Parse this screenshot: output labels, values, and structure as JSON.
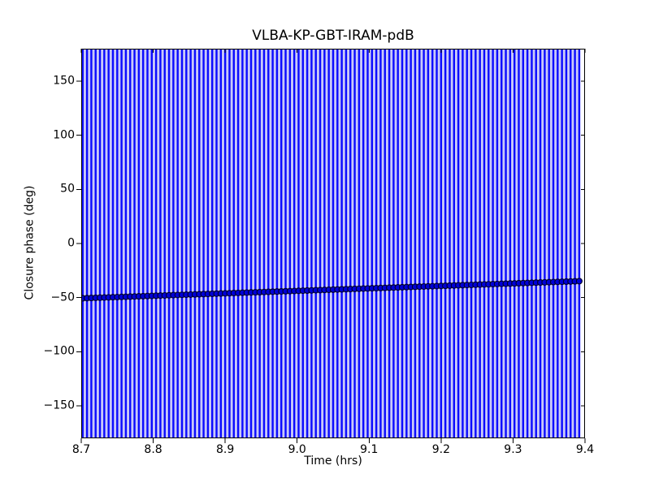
{
  "figure": {
    "background_color": "#ffffff",
    "text_color": "#000000",
    "axis_color": "#000000"
  },
  "chart_data": {
    "type": "scatter",
    "title": "VLBA-KP-GBT-IRAM-pdB",
    "xlabel": "Time (hrs)",
    "ylabel": "Closure phase (deg)",
    "xlim": [
      8.7,
      9.4
    ],
    "ylim": [
      -180,
      180
    ],
    "x_ticks": [
      8.7,
      8.8,
      8.9,
      9.0,
      9.1,
      9.2,
      9.3,
      9.4
    ],
    "x_tick_labels": [
      "8.7",
      "8.8",
      "8.9",
      "9.0",
      "9.1",
      "9.2",
      "9.3",
      "9.4"
    ],
    "y_ticks": [
      -150,
      -100,
      -50,
      0,
      50,
      100,
      150
    ],
    "y_tick_labels": [
      "−150",
      "−100",
      "−50",
      "0",
      "50",
      "100",
      "150"
    ],
    "grid": false,
    "legend": null,
    "n_points": 116,
    "errorbar_note": "every point has a vertical error bar spanning the full y-axis range (clipped at ±180 deg)",
    "series": [
      {
        "name": "closure-phase",
        "marker": "circle",
        "marker_color": "#0000d8",
        "marker_edge_color": "#000025",
        "error_bar_color": "#0a0aff",
        "error_band_tint": "#c9c9f7",
        "x": [
          8.702,
          8.708,
          8.714,
          8.72,
          8.726,
          8.732,
          8.738,
          8.744,
          8.75,
          8.756,
          8.762,
          8.768,
          8.774,
          8.78,
          8.786,
          8.792,
          8.798,
          8.804,
          8.81,
          8.816,
          8.822,
          8.828,
          8.834,
          8.84,
          8.846,
          8.852,
          8.858,
          8.864,
          8.87,
          8.876,
          8.882,
          8.888,
          8.894,
          8.9,
          8.906,
          8.912,
          8.918,
          8.924,
          8.93,
          8.936,
          8.942,
          8.948,
          8.954,
          8.96,
          8.966,
          8.972,
          8.978,
          8.984,
          8.99,
          8.996,
          9.002,
          9.008,
          9.014,
          9.02,
          9.026,
          9.032,
          9.038,
          9.044,
          9.05,
          9.056,
          9.062,
          9.068,
          9.074,
          9.08,
          9.086,
          9.092,
          9.098,
          9.104,
          9.11,
          9.116,
          9.122,
          9.128,
          9.134,
          9.14,
          9.146,
          9.152,
          9.158,
          9.164,
          9.17,
          9.176,
          9.182,
          9.188,
          9.194,
          9.2,
          9.206,
          9.212,
          9.218,
          9.224,
          9.23,
          9.236,
          9.242,
          9.248,
          9.254,
          9.26,
          9.266,
          9.272,
          9.278,
          9.284,
          9.29,
          9.296,
          9.302,
          9.308,
          9.314,
          9.32,
          9.326,
          9.332,
          9.338,
          9.344,
          9.35,
          9.356,
          9.362,
          9.368,
          9.374,
          9.38,
          9.386,
          9.392
        ],
        "y": [
          -50.6,
          -50.46,
          -50.33,
          -50.19,
          -50.05,
          -49.91,
          -49.78,
          -49.64,
          -49.5,
          -49.36,
          -49.23,
          -49.09,
          -48.95,
          -48.81,
          -48.68,
          -48.54,
          -48.4,
          -48.26,
          -48.13,
          -47.99,
          -47.85,
          -47.71,
          -47.58,
          -47.44,
          -47.3,
          -47.17,
          -47.03,
          -46.89,
          -46.75,
          -46.62,
          -46.48,
          -46.34,
          -46.2,
          -46.07,
          -45.93,
          -45.79,
          -45.65,
          -45.52,
          -45.38,
          -45.24,
          -45.1,
          -44.97,
          -44.83,
          -44.69,
          -44.55,
          -44.42,
          -44.28,
          -44.14,
          -44.01,
          -43.87,
          -43.73,
          -43.59,
          -43.46,
          -43.32,
          -43.18,
          -43.04,
          -42.91,
          -42.77,
          -42.63,
          -42.49,
          -42.36,
          -42.22,
          -42.08,
          -41.94,
          -41.81,
          -41.67,
          -41.53,
          -41.39,
          -41.26,
          -41.12,
          -40.98,
          -40.85,
          -40.71,
          -40.57,
          -40.43,
          -40.3,
          -40.16,
          -40.02,
          -39.88,
          -39.75,
          -39.61,
          -39.47,
          -39.33,
          -39.2,
          -39.06,
          -38.92,
          -38.78,
          -38.65,
          -38.51,
          -38.37,
          -38.24,
          -38.1,
          -37.96,
          -37.82,
          -37.69,
          -37.55,
          -37.41,
          -37.27,
          -37.14,
          -37.0,
          -36.86,
          -36.72,
          -36.59,
          -36.45,
          -36.31,
          -36.17,
          -36.04,
          -35.9,
          -35.76,
          -35.63,
          -35.49,
          -35.35,
          -35.21,
          -35.08,
          -34.94,
          -34.8
        ]
      }
    ]
  }
}
